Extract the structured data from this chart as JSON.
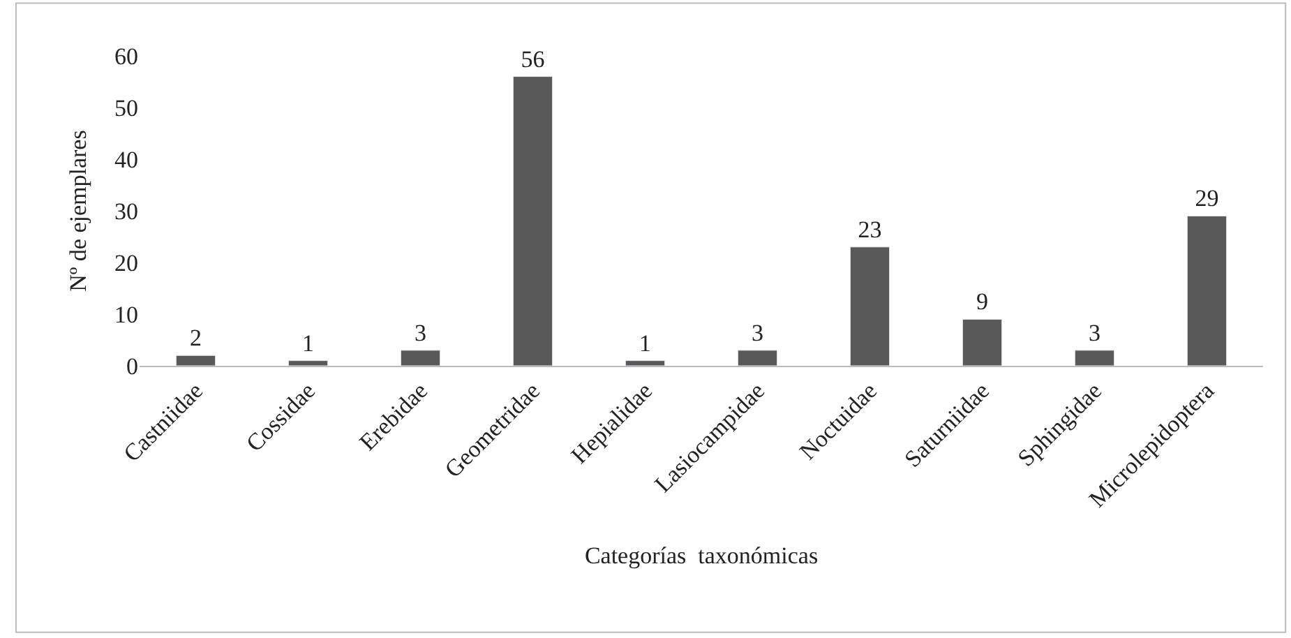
{
  "chart_data": {
    "type": "bar",
    "xlabel": "Categorías  taxonómicas",
    "ylabel": "Nº de ejemplares",
    "categories": [
      "Castniidae",
      "Cossidae",
      "Erebidae",
      "Geometridae",
      "Hepialidae",
      "Lasiocampidae",
      "Noctuidae",
      "Saturniidae",
      "Sphingidae",
      "Microlepidoptera"
    ],
    "values": [
      2,
      1,
      3,
      56,
      1,
      3,
      23,
      9,
      3,
      29
    ],
    "color": "#595959",
    "ylim": [
      0,
      60
    ],
    "yticks": [
      0,
      10,
      20,
      30,
      40,
      50,
      60
    ],
    "data_labels": true
  }
}
